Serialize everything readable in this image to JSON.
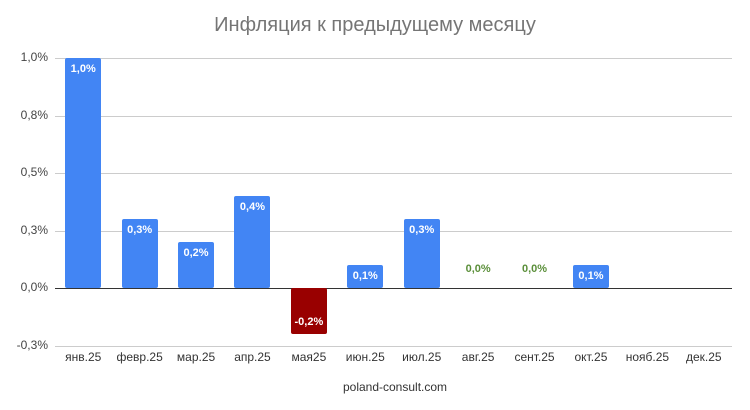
{
  "chart_data": {
    "type": "bar",
    "title": "Инфляция к предыдущему месяцу",
    "xlabel": "poland-consult.com",
    "ylabel": "",
    "categories": [
      "янв.25",
      "февр.25",
      "мар.25",
      "апр.25",
      "мая25",
      "июн.25",
      "июл.25",
      "авг.25",
      "сент.25",
      "окт.25",
      "нояб.25",
      "дек.25"
    ],
    "values": [
      1.0,
      0.3,
      0.2,
      0.4,
      -0.2,
      0.1,
      0.3,
      0.0,
      0.0,
      0.1,
      null,
      null
    ],
    "data_labels": [
      "1,0%",
      "0,3%",
      "0,2%",
      "0,4%",
      "-0,2%",
      "0,1%",
      "0,3%",
      "0,0%",
      "0,0%",
      "0,1%",
      "",
      ""
    ],
    "ylim": [
      -0.25,
      1.0
    ],
    "yticks": [
      1.0,
      0.75,
      0.5,
      0.25,
      0.0,
      -0.25
    ],
    "ytick_labels": [
      "1,0%",
      "0,8%",
      "0,5%",
      "0,3%",
      "0,0%",
      "-0,3%"
    ],
    "grid": true,
    "legend": "none",
    "colors": {
      "positive": "#4285f4",
      "negative": "#990000",
      "zero_label": "#5b8f3a"
    }
  },
  "title": "Инфляция к предыдущему месяцу",
  "source": "poland-consult.com"
}
